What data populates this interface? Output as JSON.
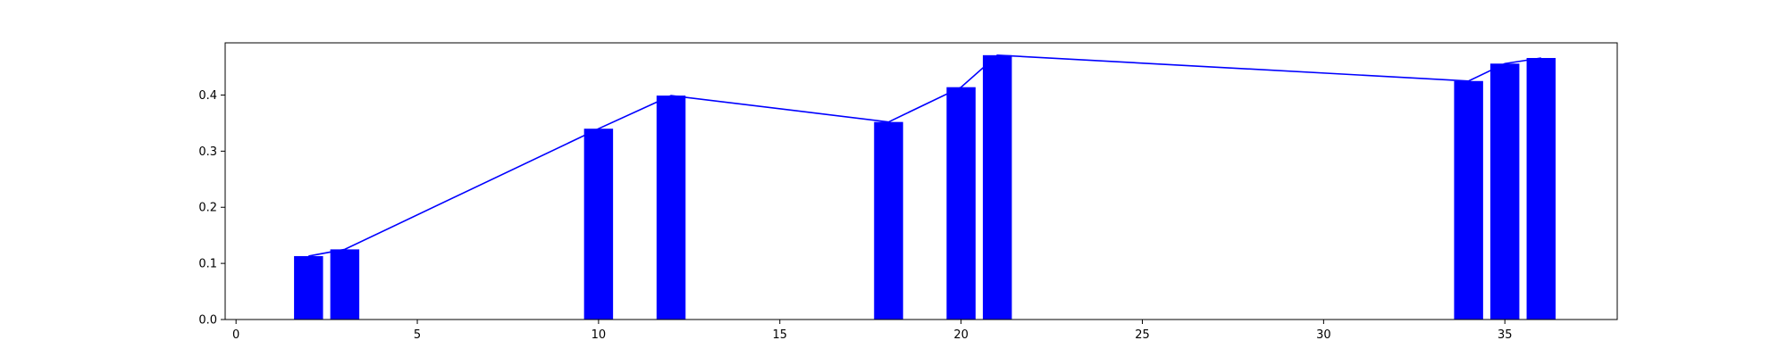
{
  "chart_data": {
    "type": "bar",
    "title": "",
    "xlabel": "",
    "ylabel": "",
    "x": [
      2,
      3,
      10,
      12,
      18,
      20,
      21,
      34,
      35,
      36
    ],
    "values": [
      0.113,
      0.125,
      0.34,
      0.399,
      0.352,
      0.414,
      0.471,
      0.425,
      0.456,
      0.466
    ],
    "xlim": [
      -0.3,
      38.1
    ],
    "ylim": [
      0.0,
      0.493
    ],
    "xticks": [
      0,
      5,
      10,
      15,
      20,
      25,
      30,
      35
    ],
    "yticks": [
      0.0,
      0.1,
      0.2,
      0.3,
      0.4
    ],
    "xtick_labels": [
      "0",
      "5",
      "10",
      "15",
      "20",
      "25",
      "30",
      "35"
    ],
    "ytick_labels": [
      "0.0",
      "0.1",
      "0.2",
      "0.3",
      "0.4"
    ],
    "bar_width": 0.8,
    "bar_color": "#0000ff",
    "line_color": "#0000ff",
    "overlay_line": true,
    "grid": false,
    "legend": false
  }
}
